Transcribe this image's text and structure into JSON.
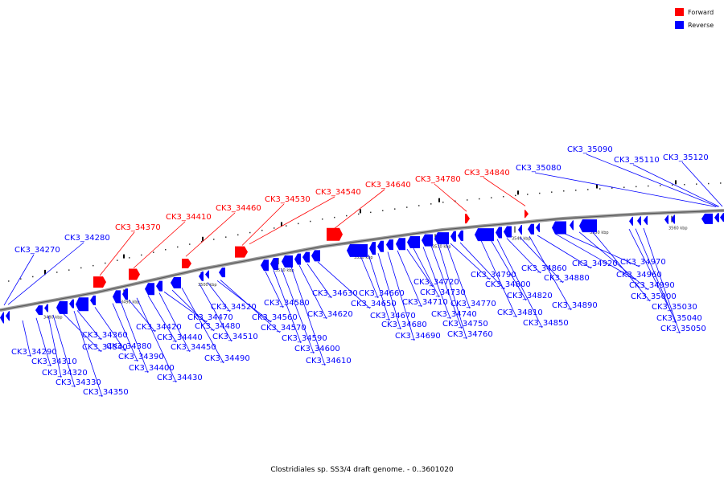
{
  "caption": "Clostridiales sp. SS3/4 draft genome. - 0..3601020",
  "legend": [
    {
      "label": "Forward",
      "color": "#ff0000"
    },
    {
      "label": "Reverse",
      "color": "#0000ff"
    }
  ],
  "colors": {
    "forward": "#ff0000",
    "reverse": "#0000ff",
    "backbone": "#808080"
  },
  "ticks": [
    "3480 kbp",
    "3490 kbp",
    "3500 kbp",
    "3510 kbp",
    "3520 kbp",
    "3530 kbp",
    "3540 kbp",
    "3550 kbp",
    "3560 kbp"
  ],
  "forward_labels": [
    "CK3_34370",
    "CK3_34410",
    "CK3_34460",
    "CK3_34530",
    "CK3_34540",
    "CK3_34640",
    "CK3_34780",
    "CK3_34840"
  ],
  "reverse_labels_top": [
    "CK3_34270",
    "CK3_34280",
    "CK3_35080",
    "CK3_35090",
    "CK3_35110",
    "CK3_35120"
  ],
  "reverse_labels_bottom": [
    "CK3_34290",
    "CK3_34310",
    "CK3_34320",
    "CK3_34330",
    "CK3_34340",
    "CK3_34350",
    "CK3_34360",
    "CK3_34380",
    "CK3_34390",
    "CK3_34400",
    "CK3_34420",
    "CK3_34430",
    "CK3_34440",
    "CK3_34450",
    "CK3_34470",
    "CK3_34480",
    "CK3_34490",
    "CK3_34510",
    "CK3_34520",
    "CK3_34560",
    "CK3_34570",
    "CK3_34580",
    "CK3_34590",
    "CK3_34600",
    "CK3_34610",
    "CK3_34620",
    "CK3_34630",
    "CK3_34650",
    "CK3_34660",
    "CK3_34670",
    "CK3_34680",
    "CK3_34690",
    "CK3_34710",
    "CK3_34720",
    "CK3_34730",
    "CK3_34740",
    "CK3_34750",
    "CK3_34760",
    "CK3_34770",
    "CK3_34790",
    "CK3_34800",
    "CK3_34810",
    "CK3_34820",
    "CK3_34850",
    "CK3_34860",
    "CK3_34880",
    "CK3_34890",
    "CK3_34920",
    "CK3_34960",
    "CK3_34970",
    "CK3_34990",
    "CK3_35000",
    "CK3_35030",
    "CK3_35040",
    "CK3_35050"
  ]
}
